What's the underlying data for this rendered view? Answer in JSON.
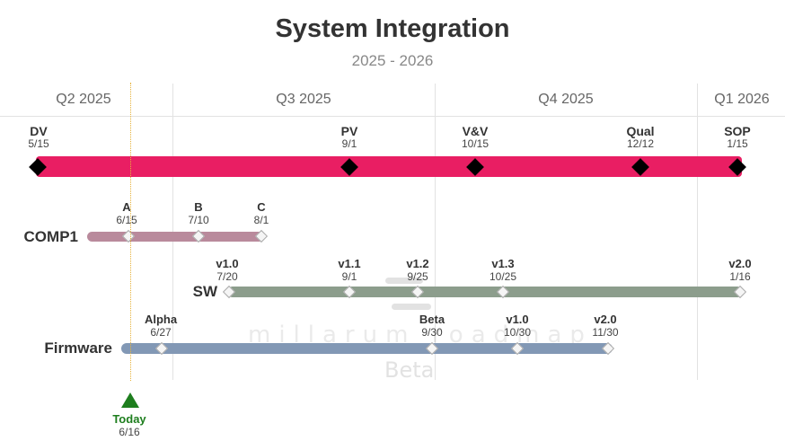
{
  "title": "System Integration",
  "subtitle": "2025 - 2026",
  "quarters": [
    "Q2 2025",
    "Q3 2025",
    "Q4 2025",
    "Q1 2026"
  ],
  "colors": {
    "main": "#e91e63",
    "comp1": "#b98a9c",
    "sw": "#8c9d8c",
    "firmware": "#8298b5",
    "today": "#1e7e1e"
  },
  "main_track": {
    "milestones": [
      {
        "name": "DV",
        "date": "5/15"
      },
      {
        "name": "PV",
        "date": "9/1"
      },
      {
        "name": "V&V",
        "date": "10/15"
      },
      {
        "name": "Qual",
        "date": "12/12"
      },
      {
        "name": "SOP",
        "date": "1/15"
      }
    ]
  },
  "rows": [
    {
      "label": "COMP1",
      "milestones": [
        {
          "name": "A",
          "date": "6/15"
        },
        {
          "name": "B",
          "date": "7/10"
        },
        {
          "name": "C",
          "date": "8/1"
        }
      ]
    },
    {
      "label": "SW",
      "milestones": [
        {
          "name": "v1.0",
          "date": "7/20"
        },
        {
          "name": "v1.1",
          "date": "9/1"
        },
        {
          "name": "v1.2",
          "date": "9/25"
        },
        {
          "name": "v1.3",
          "date": "10/25"
        },
        {
          "name": "v2.0",
          "date": "1/16"
        }
      ]
    },
    {
      "label": "Firmware",
      "milestones": [
        {
          "name": "Alpha",
          "date": "6/27"
        },
        {
          "name": "Beta",
          "date": "9/30"
        },
        {
          "name": "v1.0",
          "date": "10/30"
        },
        {
          "name": "v2.0",
          "date": "11/30"
        }
      ]
    }
  ],
  "today": {
    "label": "Today",
    "date": "6/16"
  },
  "watermark": {
    "text": "millarum roadmap",
    "sub": "Beta"
  }
}
